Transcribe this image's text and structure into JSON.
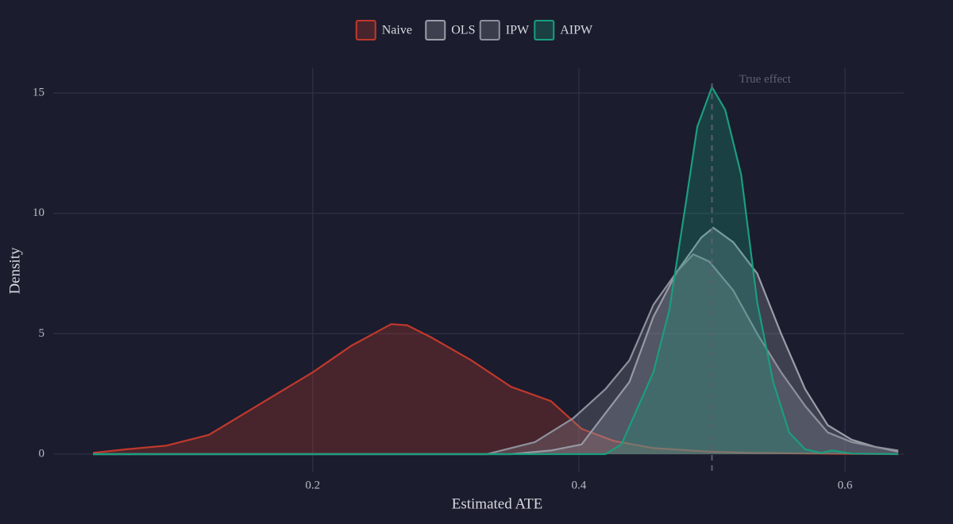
{
  "chart_data": {
    "type": "density",
    "x_label": "Estimated ATE",
    "y_label": "Density",
    "xlim": [
      0.005,
      0.668
    ],
    "ylim": [
      -0.76,
      16.06
    ],
    "xticks": [
      0.2,
      0.4,
      0.6
    ],
    "yticks": [
      0,
      5,
      10,
      15
    ],
    "grid": true,
    "legend": "top",
    "vline": {
      "x": 0.5,
      "label": "True effect"
    },
    "series": [
      {
        "name": "Naive",
        "color": "#c0392b",
        "x": [
          0.035,
          0.06,
          0.09,
          0.122,
          0.158,
          0.2,
          0.229,
          0.259,
          0.271,
          0.289,
          0.319,
          0.349,
          0.379,
          0.402,
          0.426,
          0.456,
          0.498,
          0.528,
          0.6,
          0.64
        ],
        "values": [
          0.05,
          0.2,
          0.35,
          0.8,
          2.0,
          3.4,
          4.5,
          5.4,
          5.35,
          4.85,
          3.9,
          2.8,
          2.2,
          1.05,
          0.55,
          0.25,
          0.1,
          0.05,
          0.01,
          0
        ]
      },
      {
        "name": "OLS",
        "color": "#9a9ea8",
        "x": [
          0.035,
          0.349,
          0.379,
          0.402,
          0.42,
          0.438,
          0.456,
          0.474,
          0.492,
          0.501,
          0.516,
          0.534,
          0.552,
          0.57,
          0.587,
          0.605,
          0.623,
          0.64
        ],
        "values": [
          0,
          0,
          0.15,
          0.4,
          1.7,
          3.0,
          5.7,
          7.6,
          9.0,
          9.4,
          8.8,
          7.5,
          5.0,
          2.7,
          1.2,
          0.6,
          0.3,
          0.1
        ]
      },
      {
        "name": "IPW",
        "color": "#8c919b",
        "x": [
          0.035,
          0.331,
          0.367,
          0.396,
          0.42,
          0.438,
          0.456,
          0.474,
          0.486,
          0.498,
          0.516,
          0.534,
          0.552,
          0.57,
          0.587,
          0.605,
          0.623,
          0.64
        ],
        "values": [
          0,
          0,
          0.5,
          1.5,
          2.7,
          3.9,
          6.2,
          7.6,
          8.3,
          8.0,
          6.8,
          5.0,
          3.4,
          2.0,
          0.9,
          0.5,
          0.3,
          0.15
        ]
      },
      {
        "name": "AIPW",
        "color": "#1a9e7e",
        "x": [
          0.035,
          0.42,
          0.432,
          0.444,
          0.456,
          0.468,
          0.48,
          0.489,
          0.5,
          0.51,
          0.522,
          0.534,
          0.546,
          0.558,
          0.57,
          0.582,
          0.59,
          0.605,
          0.64
        ],
        "values": [
          0,
          0,
          0.4,
          1.9,
          3.4,
          6.0,
          10.3,
          13.6,
          15.25,
          14.3,
          11.6,
          6.3,
          3.0,
          0.9,
          0.2,
          0.05,
          0.15,
          0.02,
          0
        ]
      }
    ]
  }
}
